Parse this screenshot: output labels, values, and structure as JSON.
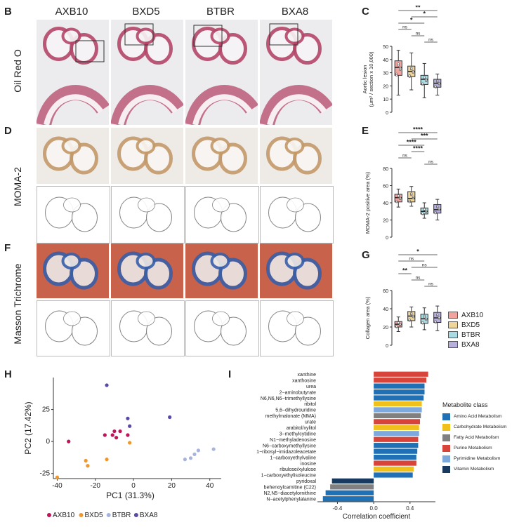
{
  "panels": {
    "B": "B",
    "C": "C",
    "D": "D",
    "E": "E",
    "F": "F",
    "G": "G",
    "H": "H",
    "I": "I"
  },
  "strains": [
    "AXB10",
    "BXD5",
    "BTBR",
    "BXA8"
  ],
  "row_labels": {
    "oil": "Oil Red O",
    "moma": "MOMA-2",
    "masson": "Masson Trichrome"
  },
  "colors": {
    "AXB10": "#f2a3a0",
    "BXD5": "#efd59a",
    "BTBR": "#a9dbe2",
    "BXA8": "#b6aedb",
    "pca_AXB10": "#c0145a",
    "pca_BXD5": "#f0962a",
    "pca_BTBR": "#a8b4dc",
    "pca_BXA8": "#5b49a8",
    "oil_stain": "#b5486a",
    "moma_stain": "#c49a6a",
    "masson_red": "#c9624a",
    "masson_blue": "#3a5fa8"
  },
  "chart_data": [
    {
      "panel": "C",
      "type": "box",
      "ylabel": "Aortic lesion\n(µm² / section x 10,000)",
      "ylim": [
        0,
        50
      ],
      "yticks": [
        0,
        10,
        20,
        30,
        40,
        50
      ],
      "categories": [
        "AXB10",
        "BXD5",
        "BTBR",
        "BXA8"
      ],
      "boxes": [
        {
          "min": 13,
          "q1": 28,
          "median": 34,
          "q3": 39,
          "max": 47
        },
        {
          "min": 17,
          "q1": 27,
          "median": 31,
          "q3": 35,
          "max": 45
        },
        {
          "min": 11,
          "q1": 21,
          "median": 25,
          "q3": 28,
          "max": 37
        },
        {
          "min": 13,
          "q1": 19,
          "median": 22,
          "q3": 25,
          "max": 29
        }
      ],
      "significance": [
        {
          "pair": [
            0,
            3
          ],
          "label": "**"
        },
        {
          "pair": [
            1,
            3
          ],
          "label": "*"
        },
        {
          "pair": [
            0,
            2
          ],
          "label": "*"
        },
        {
          "pair": [
            0,
            1
          ],
          "label": "ns"
        },
        {
          "pair": [
            1,
            2
          ],
          "label": "ns"
        },
        {
          "pair": [
            2,
            3
          ],
          "label": "ns"
        }
      ]
    },
    {
      "panel": "E",
      "type": "box",
      "ylabel": "MOMA-2 positive area (%)",
      "ylim": [
        0,
        80
      ],
      "yticks": [
        0,
        20,
        40,
        60,
        80
      ],
      "categories": [
        "AXB10",
        "BXD5",
        "BTBR",
        "BXA8"
      ],
      "boxes": [
        {
          "min": 35,
          "q1": 41,
          "median": 46,
          "q3": 50,
          "max": 56
        },
        {
          "min": 36,
          "q1": 41,
          "median": 45,
          "q3": 53,
          "max": 59
        },
        {
          "min": 22,
          "q1": 27,
          "median": 30,
          "q3": 34,
          "max": 40
        },
        {
          "min": 20,
          "q1": 28,
          "median": 32,
          "q3": 38,
          "max": 44
        }
      ],
      "significance": [
        {
          "pair": [
            0,
            3
          ],
          "label": "****"
        },
        {
          "pair": [
            1,
            3
          ],
          "label": "***"
        },
        {
          "pair": [
            0,
            2
          ],
          "label": "****"
        },
        {
          "pair": [
            1,
            2
          ],
          "label": "****"
        },
        {
          "pair": [
            0,
            1
          ],
          "label": "ns"
        },
        {
          "pair": [
            2,
            3
          ],
          "label": "ns"
        }
      ]
    },
    {
      "panel": "G",
      "type": "box",
      "ylabel": "Collagen area (%)",
      "ylim": [
        0,
        60
      ],
      "yticks": [
        0,
        20,
        40,
        60
      ],
      "categories": [
        "AXB10",
        "BXD5",
        "BTBR",
        "BXA8"
      ],
      "boxes": [
        {
          "min": 15,
          "q1": 20,
          "median": 23,
          "q3": 26,
          "max": 31
        },
        {
          "min": 20,
          "q1": 27,
          "median": 32,
          "q3": 37,
          "max": 42
        },
        {
          "min": 17,
          "q1": 24,
          "median": 29,
          "q3": 34,
          "max": 41
        },
        {
          "min": 16,
          "q1": 25,
          "median": 30,
          "q3": 36,
          "max": 43
        }
      ],
      "significance": [
        {
          "pair": [
            0,
            3
          ],
          "label": "*"
        },
        {
          "pair": [
            0,
            2
          ],
          "label": "ns"
        },
        {
          "pair": [
            1,
            3
          ],
          "label": "ns"
        },
        {
          "pair": [
            0,
            1
          ],
          "label": "**"
        },
        {
          "pair": [
            1,
            2
          ],
          "label": "ns"
        },
        {
          "pair": [
            2,
            3
          ],
          "label": "ns"
        }
      ],
      "legend": [
        "AXB10",
        "BXD5",
        "BTBR",
        "BXA8"
      ]
    },
    {
      "panel": "H",
      "type": "scatter",
      "xlabel": "PC1 (31.3%)",
      "ylabel": "PC2 (17.42%)",
      "xlim": [
        -42,
        46
      ],
      "ylim": [
        -29,
        50
      ],
      "xticks": [
        -40,
        -20,
        0,
        20,
        40
      ],
      "yticks": [
        -25,
        0,
        25
      ],
      "series": [
        {
          "name": "AXB10",
          "points": [
            [
              -34,
              0
            ],
            [
              -15,
              5
            ],
            [
              -10,
              8
            ],
            [
              -7,
              8
            ],
            [
              -9,
              3
            ],
            [
              -3,
              5
            ],
            [
              -11,
              5
            ]
          ]
        },
        {
          "name": "BXD5",
          "points": [
            [
              -40,
              -28
            ],
            [
              -25,
              -15
            ],
            [
              -24,
              -19
            ],
            [
              -14,
              -14
            ],
            [
              -2,
              -1
            ]
          ]
        },
        {
          "name": "BTBR",
          "points": [
            [
              27,
              -14
            ],
            [
              30,
              -13
            ],
            [
              32,
              -10
            ],
            [
              34,
              -7
            ],
            [
              42,
              -6
            ]
          ]
        },
        {
          "name": "BXA8",
          "points": [
            [
              -14,
              44
            ],
            [
              -3,
              18
            ],
            [
              19,
              19
            ],
            [
              -2,
              12
            ]
          ]
        }
      ],
      "legend": [
        "AXB10",
        "BXD5",
        "BTBR",
        "BXA8"
      ]
    },
    {
      "panel": "I",
      "type": "bar",
      "xlabel": "Correlation coefficient",
      "xlim": [
        -0.62,
        0.68
      ],
      "xticks": [
        -0.4,
        0.0,
        0.4
      ],
      "xtick_labels": [
        "-0.4",
        "0.0",
        "0.4"
      ],
      "legend_title": "Metabolite class",
      "classes": [
        {
          "name": "Amino Acid Metabolism",
          "color": "#1f70b5"
        },
        {
          "name": "Carbohydrate Metabolism",
          "color": "#f0c11c"
        },
        {
          "name": "Fatty Acid Metabolism",
          "color": "#808080"
        },
        {
          "name": "Purine Metabolism",
          "color": "#d9443a"
        },
        {
          "name": "Pyrimidine Metabolism",
          "color": "#7ea9dc"
        },
        {
          "name": "Vitamin Metabolism",
          "color": "#173a5e"
        }
      ],
      "bars": [
        {
          "label": "xanthine",
          "value": 0.6,
          "class": 3
        },
        {
          "label": "xanthosine",
          "value": 0.58,
          "class": 3
        },
        {
          "label": "urea",
          "value": 0.56,
          "class": 0
        },
        {
          "label": "2−aminobutyrate",
          "value": 0.56,
          "class": 0
        },
        {
          "label": "N6,N6,N6−trimethyllysine",
          "value": 0.55,
          "class": 0
        },
        {
          "label": "ribitol",
          "value": 0.53,
          "class": 1
        },
        {
          "label": "5,6−dihydrouridine",
          "value": 0.53,
          "class": 4
        },
        {
          "label": "methylmalonate (MMA)",
          "value": 0.52,
          "class": 2
        },
        {
          "label": "urate",
          "value": 0.51,
          "class": 3
        },
        {
          "label": "arabitol/xylitol",
          "value": 0.5,
          "class": 1
        },
        {
          "label": "3−methylcytidine",
          "value": 0.5,
          "class": 4
        },
        {
          "label": "N1−methyladenosine",
          "value": 0.49,
          "class": 3
        },
        {
          "label": "N6−carboxymethyllysine",
          "value": 0.49,
          "class": 0
        },
        {
          "label": "1−ribosyl−imidazoleacetate",
          "value": 0.48,
          "class": 0
        },
        {
          "label": "1−carboxyethylvaline",
          "value": 0.47,
          "class": 0
        },
        {
          "label": "inosine",
          "value": 0.47,
          "class": 3
        },
        {
          "label": "ribulose/xylulose",
          "value": 0.44,
          "class": 1
        },
        {
          "label": "1−carboxyethylisoleucine",
          "value": 0.43,
          "class": 0
        },
        {
          "label": "pyridoxal",
          "value": -0.46,
          "class": 5
        },
        {
          "label": "behenoylcarnitine (C22)",
          "value": -0.48,
          "class": 2
        },
        {
          "label": "N2,N5−diacetylornithine",
          "value": -0.53,
          "class": 0
        },
        {
          "label": "N−acetylphenylalanine",
          "value": -0.56,
          "class": 0
        }
      ]
    }
  ]
}
